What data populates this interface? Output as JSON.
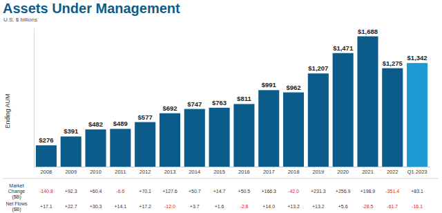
{
  "chart_data": {
    "type": "bar",
    "title": "Assets Under Management",
    "subtitle": "U.S. $ billions",
    "ylabel": "Ending AUM",
    "categories": [
      "2008",
      "2009",
      "2010",
      "2011",
      "2012",
      "2013",
      "2014",
      "2015",
      "2016",
      "2017",
      "2018",
      "2019",
      "2020",
      "2021",
      "2022",
      "Q1 2023"
    ],
    "values": [
      276,
      391,
      482,
      489,
      577,
      692,
      747,
      763,
      811,
      991,
      962,
      1207,
      1471,
      1688,
      1275,
      1342
    ],
    "value_labels": [
      "$276",
      "$391",
      "$482",
      "$489",
      "$577",
      "$692",
      "$747",
      "$763",
      "$811",
      "$991",
      "$962",
      "$1,207",
      "$1,471",
      "$1,688",
      "$1,275",
      "$1,342"
    ],
    "colors": [
      "#0b5c8b",
      "#0b5c8b",
      "#0b5c8b",
      "#0b5c8b",
      "#0b5c8b",
      "#0b5c8b",
      "#0b5c8b",
      "#0b5c8b",
      "#0b5c8b",
      "#0b5c8b",
      "#0b5c8b",
      "#0b5c8b",
      "#0b5c8b",
      "#0b5c8b",
      "#0b5c8b",
      "#1b9ad6"
    ],
    "ylim": [
      0,
      1800
    ],
    "yticks": [],
    "grid": false,
    "data_labels": true,
    "tick_labels": "x"
  },
  "table": {
    "rows": [
      {
        "label": "Market Change ($B)",
        "values": [
          -140.8,
          92.3,
          60.4,
          -6.6,
          70.1,
          127.6,
          50.7,
          14.7,
          50.5,
          166.3,
          -42.0,
          231.3,
          256.9,
          198.9,
          -351.4,
          83.1
        ],
        "value_labels": [
          "-140.8",
          "+92.3",
          "+60.4",
          "-6.6",
          "+70.1",
          "+127.6",
          "+50.7",
          "+14.7",
          "+50.5",
          "+166.3",
          "-42.0",
          "+231.3",
          "+256.9",
          "+198.9",
          "-351.4",
          "+83.1"
        ]
      },
      {
        "label": "Net Flows ($B)",
        "values": [
          17.1,
          22.7,
          30.3,
          14.1,
          17.2,
          -12.0,
          3.7,
          1.6,
          -2.8,
          14.0,
          13.2,
          13.2,
          5.6,
          -28.5,
          -61.7,
          -16.1
        ],
        "value_labels": [
          "+17.1",
          "+22.7",
          "+30.3",
          "+14.1",
          "+17.2",
          "-12.0",
          "+3.7",
          "+1.6",
          "-2.8",
          "+14.0",
          "+13.2",
          "+13.2",
          "+5.6",
          "-28.5",
          "-61.7",
          "-16.1"
        ]
      }
    ]
  }
}
